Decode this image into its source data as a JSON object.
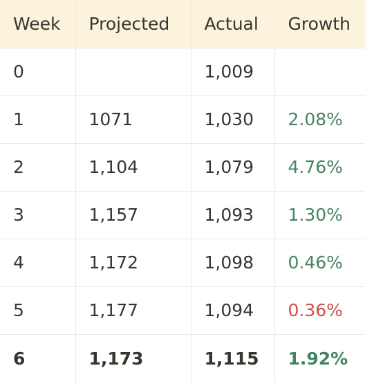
{
  "table": {
    "columns": [
      "Week",
      "Projected",
      "Actual",
      "Growth"
    ],
    "rows": [
      {
        "week": "0",
        "projected": "",
        "actual": "1,009",
        "growth": "",
        "growth_status": "none"
      },
      {
        "week": "1",
        "projected": "1071",
        "actual": "1,030",
        "growth": "2.08%",
        "growth_status": "positive"
      },
      {
        "week": "2",
        "projected": "1,104",
        "actual": "1,079",
        "growth": "4.76%",
        "growth_status": "positive"
      },
      {
        "week": "3",
        "projected": "1,157",
        "actual": "1,093",
        "growth": "1.30%",
        "growth_status": "positive"
      },
      {
        "week": "4",
        "projected": "1,172",
        "actual": "1,098",
        "growth": "0.46%",
        "growth_status": "positive"
      },
      {
        "week": "5",
        "projected": "1,177",
        "actual": "1,094",
        "growth": "0.36%",
        "growth_status": "negative"
      },
      {
        "week": "6",
        "projected": "1,173",
        "actual": "1,115",
        "growth": "1.92%",
        "growth_status": "positive"
      }
    ]
  },
  "colors": {
    "header_background": "#fbf3dc",
    "text": "#37352f",
    "growth_positive": "#448361",
    "growth_negative": "#d44c47",
    "grid_line": "#e9e9e7"
  }
}
